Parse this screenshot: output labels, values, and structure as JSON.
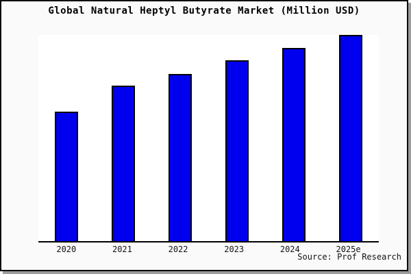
{
  "frame": {
    "background": "#fafafa",
    "border_color": "#0a0a0a",
    "shadow_color": "#9b9b9b"
  },
  "chart_data": {
    "type": "bar",
    "title": "Global Natural Heptyl Butyrate Market (Million USD)",
    "categories": [
      "2020",
      "2021",
      "2022",
      "2023",
      "2024",
      "2025e"
    ],
    "values": [
      62.8,
      75.4,
      81.1,
      87.7,
      93.7,
      100
    ],
    "value_scale": "percent of tallest bar (2025e); chart shows no y-axis tick labels",
    "xlabel": "",
    "ylabel": "",
    "y_axis_ticks": "none",
    "grid": false,
    "legend": "none",
    "bar_color": "#0000EE",
    "bar_border_color": "#000000",
    "plot_background": "#FFFFFF",
    "source_note": "Source: Prof Research"
  }
}
